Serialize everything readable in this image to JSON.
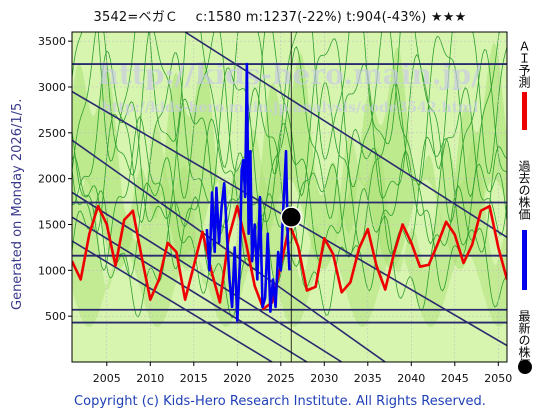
{
  "header": {
    "title": "3542=ベガＣ　 c:1580  m:1237(-22%)  t:904(-43%)  ★★★"
  },
  "side_note": "Generated on Monday 2026/1/5.",
  "watermark": {
    "line1": "http://kids-hero.main.jp/",
    "line2": "http://kids-hero.main.jp/analysis/code3542.html"
  },
  "footer": "Copyright (c) Kids-Hero Research Institute. All Rights Reserved.",
  "legend": [
    {
      "label": "ＡＩ予測",
      "color": "#ee0000",
      "kind": "bar"
    },
    {
      "label": "過去の株価",
      "color": "#0000ee",
      "kind": "bar"
    },
    {
      "label": "最新の株価",
      "color": "#000000",
      "kind": "dot"
    }
  ],
  "colors": {
    "band_light": "#d8f5b0",
    "band_mid": "#a8e070",
    "green_lines": "#2e9e2e",
    "trend_lines": "#2a2a6e",
    "grid": "#bfbfbf"
  },
  "chart_data": {
    "type": "line",
    "xlim": [
      2001,
      2051
    ],
    "ylim": [
      0,
      3600
    ],
    "x_ticks": [
      2005,
      2010,
      2015,
      2020,
      2025,
      2030,
      2035,
      2040,
      2045,
      2050
    ],
    "y_ticks": [
      500,
      1000,
      1500,
      2000,
      2500,
      3000,
      3500
    ],
    "horizontal_levels": [
      3250,
      1740,
      1160,
      570,
      430
    ],
    "trend_lines": [
      {
        "from": [
          2014,
          3600
        ],
        "to": [
          2051,
          1360
        ]
      },
      {
        "from": [
          2001,
          2950
        ],
        "to": [
          2051,
          180
        ]
      },
      {
        "from": [
          2001,
          2420
        ],
        "to": [
          2037,
          0
        ]
      },
      {
        "from": [
          2001,
          1850
        ],
        "to": [
          2032,
          0
        ]
      },
      {
        "from": [
          2001,
          1580
        ],
        "to": [
          2028,
          0
        ]
      },
      {
        "from": [
          2001,
          1320
        ],
        "to": [
          2024,
          0
        ]
      }
    ],
    "latest": {
      "x": 2026.2,
      "y": 1580
    },
    "ai_forecast": {
      "name": "ＡＩ予測",
      "x": [
        2001.0,
        2002.0,
        2003.0,
        2004.0,
        2005.0,
        2006.0,
        2007.0,
        2008.0,
        2009.0,
        2010.0,
        2011.0,
        2012.0,
        2013.0,
        2014.0,
        2015.0,
        2016.0,
        2017.0,
        2018.0,
        2019.0,
        2020.0,
        2021.0,
        2022.0,
        2023.0,
        2024.0,
        2025.0,
        2026.0,
        2027.0,
        2028.0,
        2029.0,
        2030.0,
        2031.0,
        2032.0,
        2033.0,
        2034.0,
        2035.0,
        2036.0,
        2037.0,
        2038.0,
        2039.0,
        2040.0,
        2041.0,
        2042.0,
        2043.0,
        2044.0,
        2045.0,
        2046.0,
        2047.0,
        2048.0,
        2049.0,
        2050.0,
        2051.0
      ],
      "y": [
        1100,
        900,
        1400,
        1700,
        1500,
        1050,
        1550,
        1650,
        1150,
        680,
        900,
        1300,
        1200,
        680,
        1050,
        1420,
        1000,
        650,
        1350,
        1700,
        1300,
        830,
        580,
        650,
        1050,
        1500,
        1260,
        780,
        820,
        1350,
        1180,
        760,
        870,
        1240,
        1450,
        1050,
        790,
        1180,
        1500,
        1300,
        1040,
        1060,
        1280,
        1530,
        1390,
        1080,
        1280,
        1650,
        1700,
        1250,
        900
      ]
    },
    "past_price": {
      "name": "過去の株価",
      "x": [
        2016.5,
        2016.8,
        2017.1,
        2017.4,
        2017.6,
        2017.9,
        2018.2,
        2018.5,
        2018.8,
        2019.1,
        2019.4,
        2019.7,
        2020.0,
        2020.3,
        2020.5,
        2020.7,
        2020.9,
        2021.1,
        2021.3,
        2021.5,
        2021.7,
        2022.0,
        2022.3,
        2022.6,
        2022.9,
        2023.2,
        2023.5,
        2023.8,
        2024.1,
        2024.4,
        2024.7,
        2025.0,
        2025.2,
        2025.4,
        2025.6,
        2025.8,
        2026.0
      ],
      "y": [
        1450,
        1000,
        1850,
        1200,
        1900,
        1300,
        1700,
        1950,
        1400,
        900,
        600,
        1250,
        450,
        1100,
        2100,
        2200,
        1800,
        3250,
        1400,
        2300,
        1100,
        1500,
        900,
        1800,
        600,
        700,
        1400,
        550,
        900,
        600,
        1200,
        1000,
        1500,
        1900,
        2300,
        1350,
        1000
      ]
    }
  }
}
